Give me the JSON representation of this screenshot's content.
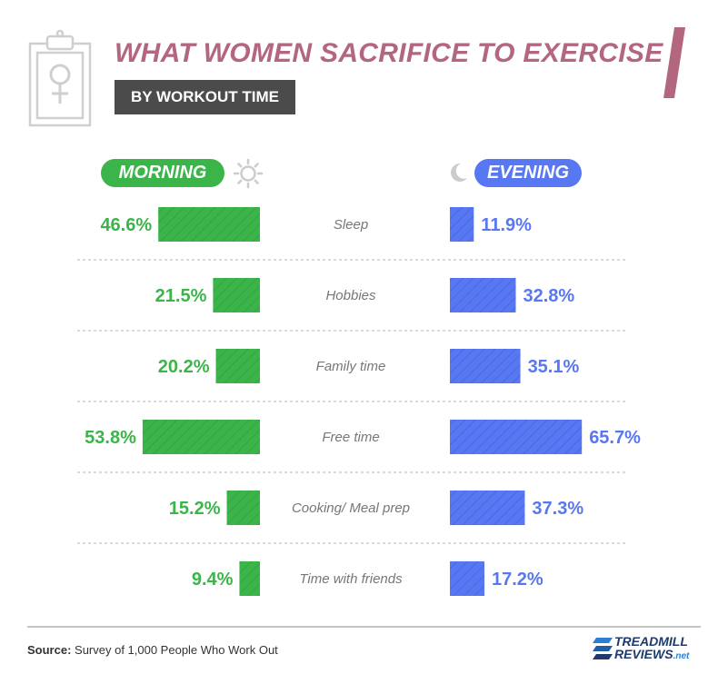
{
  "header": {
    "title": "WHAT WOMEN SACRIFICE TO EXERCISE",
    "subtitle": "BY WORKOUT TIME"
  },
  "legend": {
    "morning_label": "MORNING",
    "evening_label": "EVENING"
  },
  "colors": {
    "morning": "#3bb54a",
    "evening": "#5877f2",
    "title": "#b3677f",
    "category_text": "#777777"
  },
  "icons": {
    "clipboard": "clipboard-female-symbol-icon",
    "sun": "sun-icon",
    "moon": "moon-icon",
    "logo": "treadmill-reviews-logo-icon"
  },
  "chart_data": {
    "type": "bar",
    "orientation": "horizontal-butterfly",
    "categories": [
      "Sleep",
      "Hobbies",
      "Family time",
      "Free time",
      "Cooking/ Meal prep",
      "Time with friends"
    ],
    "series": [
      {
        "name": "MORNING",
        "values": [
          46.6,
          21.5,
          20.2,
          53.8,
          15.2,
          9.4
        ]
      },
      {
        "name": "EVENING",
        "values": [
          11.9,
          32.8,
          35.1,
          65.7,
          37.3,
          17.2
        ]
      }
    ],
    "value_labels": {
      "morning": [
        "46.6%",
        "21.5%",
        "20.2%",
        "53.8%",
        "15.2%",
        "9.4%"
      ],
      "evening": [
        "11.9%",
        "32.8%",
        "35.1%",
        "65.7%",
        "37.3%",
        "17.2%"
      ]
    },
    "unit": "%",
    "grid": false
  },
  "footer": {
    "source_label": "Source:",
    "source_text": " Survey of 1,000 People Who Work Out",
    "logo_line1": "TREADMILL",
    "logo_line2": "REVIEWS",
    "logo_suffix": ".net"
  }
}
